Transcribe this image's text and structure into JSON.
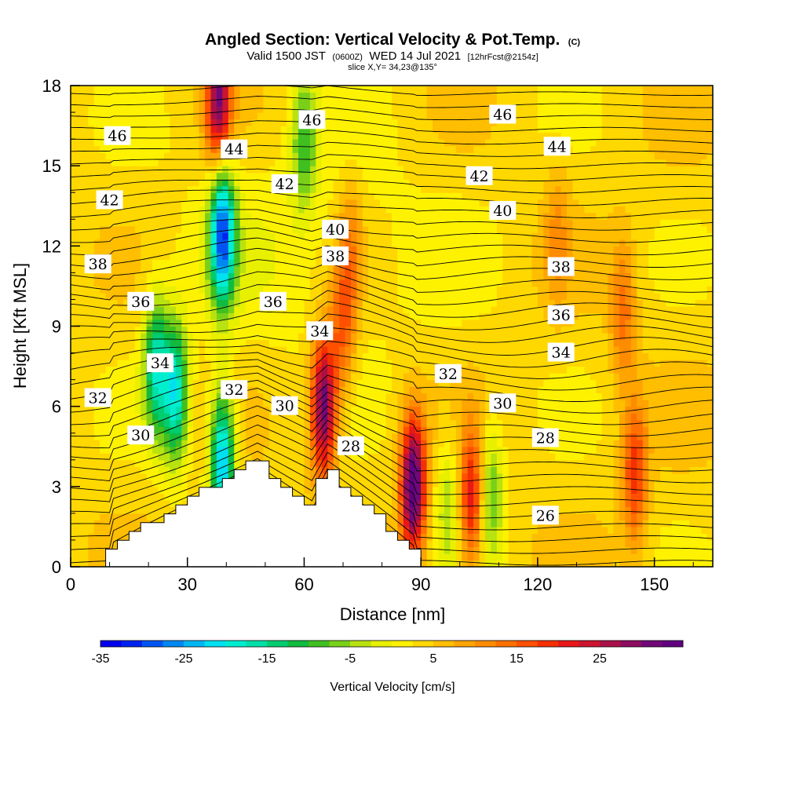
{
  "chart_data": {
    "type": "heatmap",
    "title": "Angled Section: Vertical Velocity & Pot.Temp.",
    "title_unit": "(C)",
    "subtitle_parts": [
      "Valid 1500 JST",
      "(0600Z)",
      "WED 14 Jul 2021",
      "[12hrFcst@2154z]"
    ],
    "slice_text": "slice X,Y= 34,23@135°",
    "xlabel": "Distance [nm]",
    "ylabel": "Height [Kft MSL]",
    "xlim": [
      0,
      165
    ],
    "ylim": [
      0,
      18
    ],
    "x_ticks": [
      "0",
      "30",
      "60",
      "90",
      "120",
      "150"
    ],
    "y_ticks": [
      "0",
      "3",
      "6",
      "9",
      "12",
      "15",
      "18"
    ],
    "colorbar": {
      "label": "Vertical Velocity [cm/s]",
      "tick_labels": [
        "-35",
        "-25",
        "-15",
        "-5",
        "5",
        "15",
        "25"
      ],
      "levels": [
        -35,
        -32.5,
        -30,
        -27.5,
        -25,
        -22.5,
        -20,
        -17.5,
        -15,
        -12.5,
        -10,
        -7.5,
        -5,
        -2.5,
        0,
        2.5,
        5,
        7.5,
        10,
        12.5,
        15,
        17.5,
        20,
        22.5,
        25,
        27.5,
        30,
        32.5,
        35
      ],
      "colors": [
        "#0000ee",
        "#0022f0",
        "#0055f2",
        "#0088f2",
        "#00b6f2",
        "#00e0f0",
        "#00eed0",
        "#00e0a8",
        "#00cc70",
        "#10bb40",
        "#40c020",
        "#7ad018",
        "#b8e210",
        "#e8f000",
        "#fff200",
        "#ffd800",
        "#ffbe00",
        "#ffa400",
        "#ff8c00",
        "#ff7000",
        "#ff5000",
        "#f53000",
        "#e81818",
        "#cc1430",
        "#aa1048",
        "#8c0c60",
        "#700878",
        "#600080"
      ]
    },
    "theta_labels": [
      {
        "text": "46",
        "x": 12,
        "y": 16.1
      },
      {
        "text": "46",
        "x": 62,
        "y": 16.7
      },
      {
        "text": "46",
        "x": 111,
        "y": 16.9
      },
      {
        "text": "44",
        "x": 42,
        "y": 15.6
      },
      {
        "text": "44",
        "x": 125,
        "y": 15.7
      },
      {
        "text": "42",
        "x": 10,
        "y": 13.7
      },
      {
        "text": "42",
        "x": 55,
        "y": 14.3
      },
      {
        "text": "42",
        "x": 105,
        "y": 14.6
      },
      {
        "text": "40",
        "x": 68,
        "y": 12.6
      },
      {
        "text": "40",
        "x": 111,
        "y": 13.3
      },
      {
        "text": "38",
        "x": 7,
        "y": 11.3
      },
      {
        "text": "38",
        "x": 68,
        "y": 11.6
      },
      {
        "text": "38",
        "x": 126,
        "y": 11.2
      },
      {
        "text": "36",
        "x": 18,
        "y": 9.9
      },
      {
        "text": "36",
        "x": 52,
        "y": 9.9
      },
      {
        "text": "36",
        "x": 126,
        "y": 9.4
      },
      {
        "text": "34",
        "x": 64,
        "y": 8.8
      },
      {
        "text": "34",
        "x": 23,
        "y": 7.6
      },
      {
        "text": "34",
        "x": 126,
        "y": 8.0
      },
      {
        "text": "32",
        "x": 7,
        "y": 6.3
      },
      {
        "text": "32",
        "x": 42,
        "y": 6.6
      },
      {
        "text": "32",
        "x": 97,
        "y": 7.2
      },
      {
        "text": "30",
        "x": 55,
        "y": 6.0
      },
      {
        "text": "30",
        "x": 111,
        "y": 6.1
      },
      {
        "text": "30",
        "x": 18,
        "y": 4.9
      },
      {
        "text": "28",
        "x": 72,
        "y": 4.5
      },
      {
        "text": "28",
        "x": 122,
        "y": 4.8
      },
      {
        "text": "26",
        "x": 122,
        "y": 1.9
      }
    ],
    "terrain_peaks": [
      {
        "x": 10,
        "z": 0.7
      },
      {
        "x": 48,
        "z": 4.0
      },
      {
        "x": 62,
        "z": 2.3
      },
      {
        "x": 66,
        "z": 3.7
      },
      {
        "x": 89,
        "z": 0.5
      }
    ],
    "velocity_features": [
      {
        "x": 39,
        "y": 12.5,
        "w": -32
      },
      {
        "x": 39,
        "y": 4.0,
        "w": -28
      },
      {
        "x": 27,
        "y": 6.5,
        "w": -22
      },
      {
        "x": 22,
        "y": 7.5,
        "w": -20
      },
      {
        "x": 38,
        "y": 17.5,
        "w": 26
      },
      {
        "x": 65,
        "y": 6.0,
        "w": 30
      },
      {
        "x": 88,
        "y": 3.0,
        "w": 32
      },
      {
        "x": 103,
        "y": 2.5,
        "w": 18
      },
      {
        "x": 145,
        "y": 3.5,
        "w": 15
      },
      {
        "x": 142,
        "y": 9.5,
        "w": 10
      },
      {
        "x": 108,
        "y": 2.8,
        "w": -12
      },
      {
        "x": 97,
        "y": 2.5,
        "w": -8
      },
      {
        "x": 60,
        "y": 16.0,
        "w": -12
      },
      {
        "x": 72,
        "y": 12.0,
        "w": 8
      },
      {
        "x": 70,
        "y": 9.0,
        "w": 12
      },
      {
        "x": 125,
        "y": 12.5,
        "w": 6
      }
    ]
  }
}
